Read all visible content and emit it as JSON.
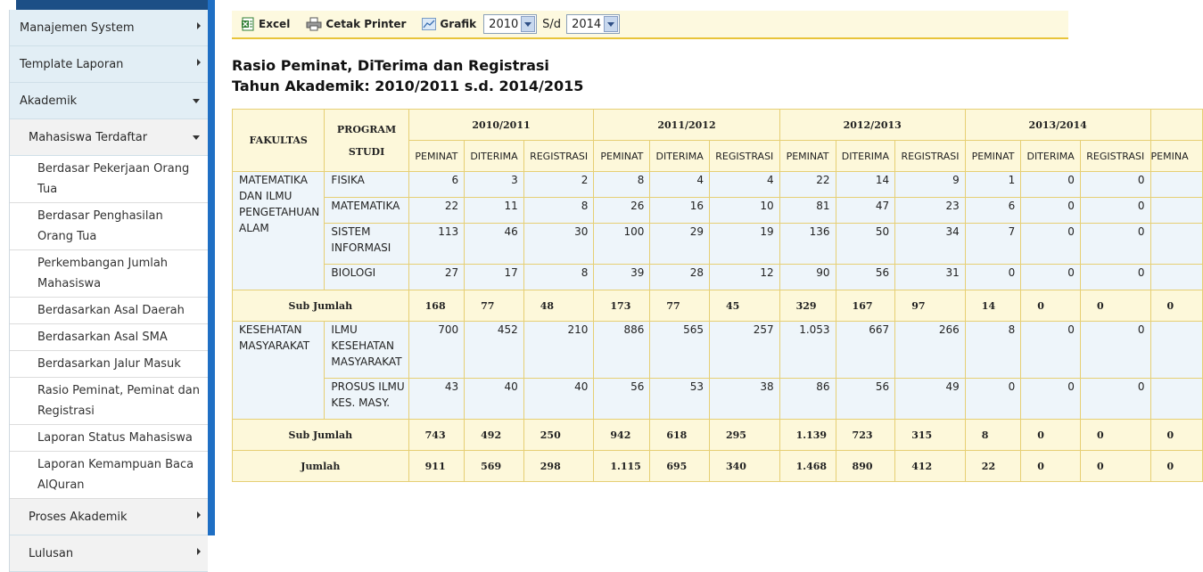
{
  "sidebar": {
    "items": [
      {
        "label": "Manajemen System"
      },
      {
        "label": "Template Laporan"
      },
      {
        "label": "Akademik"
      }
    ],
    "submenu": {
      "label": "Mahasiswa Terdaftar"
    },
    "leaves": [
      "Berdasar Pekerjaan Orang Tua",
      "Berdasar Penghasilan Orang Tua",
      "Perkembangan Jumlah Mahasiswa",
      "Berdasarkan Asal Daerah",
      "Berdasarkan Asal SMA",
      "Berdasarkan Jalur Masuk",
      "Rasio Peminat, Peminat dan Registrasi",
      "Laporan Status Mahasiswa",
      "Laporan Kemampuan Baca AlQuran"
    ],
    "bottom": [
      {
        "label": "Proses Akademik"
      },
      {
        "label": "Lulusan"
      }
    ]
  },
  "toolbar": {
    "excel_label": "Excel",
    "print_label": "Cetak Printer",
    "chart_label": "Grafik",
    "year_from": "2010",
    "sd_label": "S/d",
    "year_to": "2014"
  },
  "report": {
    "title_line1": "Rasio Peminat, DiTerima dan Registrasi",
    "title_line2": "Tahun Akademik: 2010/2011 s.d. 2014/2015"
  },
  "table": {
    "col_fakultas": "FAKULTAS",
    "col_prodi_1": "PROGRAM",
    "col_prodi_2": "STUDI",
    "years": [
      "2010/2011",
      "2011/2012",
      "2012/2013",
      "2013/2014"
    ],
    "subcols": [
      "PEMINAT",
      "DITERIMA",
      "REGISTRASI"
    ],
    "last_partial": "PEMINA",
    "sub_label": "Sub Jumlah",
    "total_label": "Jumlah",
    "groups": [
      {
        "fakultas": "MATEMATIKA DAN ILMU PENGETAHUAN ALAM",
        "rows": [
          {
            "prodi": "FISIKA",
            "values": [
              "6",
              "3",
              "2",
              "8",
              "4",
              "4",
              "22",
              "14",
              "9",
              "1",
              "0",
              "0"
            ]
          },
          {
            "prodi": "MATEMATIKA",
            "values": [
              "22",
              "11",
              "8",
              "26",
              "16",
              "10",
              "81",
              "47",
              "23",
              "6",
              "0",
              "0"
            ]
          },
          {
            "prodi": "SISTEM INFORMASI",
            "values": [
              "113",
              "46",
              "30",
              "100",
              "29",
              "19",
              "136",
              "50",
              "34",
              "7",
              "0",
              "0"
            ]
          },
          {
            "prodi": "BIOLOGI",
            "values": [
              "27",
              "17",
              "8",
              "39",
              "28",
              "12",
              "90",
              "56",
              "31",
              "0",
              "0",
              "0"
            ]
          }
        ],
        "subtotal": [
          "168",
          "77",
          "48",
          "173",
          "77",
          "45",
          "329",
          "167",
          "97",
          "14",
          "0",
          "0",
          "0"
        ]
      },
      {
        "fakultas": "KESEHATAN MASYARAKAT",
        "rows": [
          {
            "prodi": "ILMU KESEHATAN MASYARAKAT",
            "values": [
              "700",
              "452",
              "210",
              "886",
              "565",
              "257",
              "1.053",
              "667",
              "266",
              "8",
              "0",
              "0"
            ]
          },
          {
            "prodi": "PROSUS ILMU KES. MASY.",
            "values": [
              "43",
              "40",
              "40",
              "56",
              "53",
              "38",
              "86",
              "56",
              "49",
              "0",
              "0",
              "0"
            ]
          }
        ],
        "subtotal": [
          "743",
          "492",
          "250",
          "942",
          "618",
          "295",
          "1.139",
          "723",
          "315",
          "8",
          "0",
          "0",
          "0"
        ]
      }
    ],
    "total": [
      "911",
      "569",
      "298",
      "1.115",
      "695",
      "340",
      "1.468",
      "890",
      "412",
      "22",
      "0",
      "0",
      "0"
    ]
  }
}
